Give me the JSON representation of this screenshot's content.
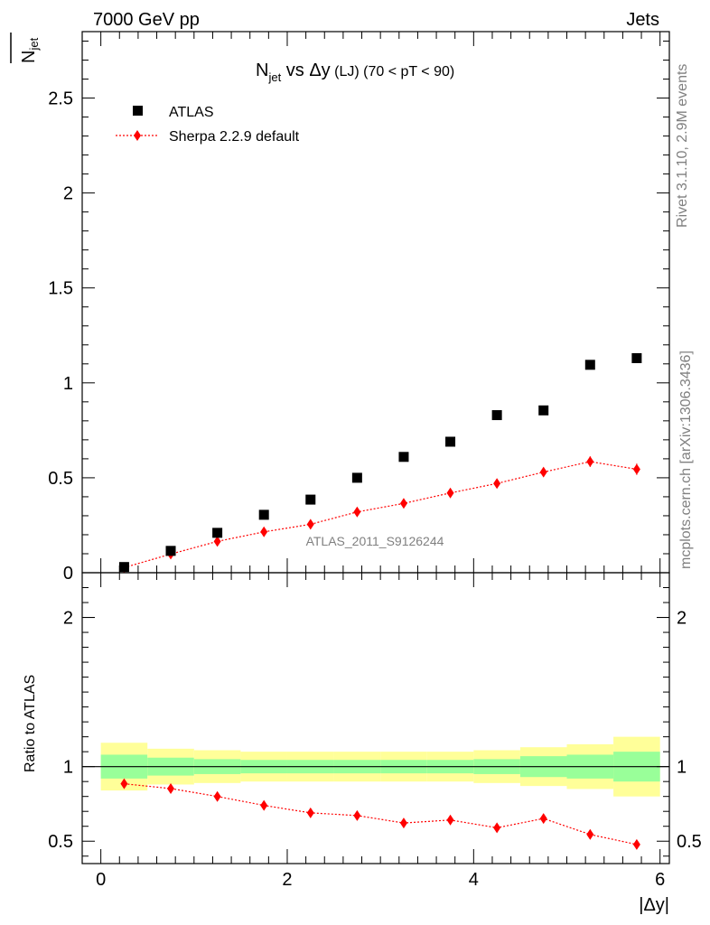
{
  "header": {
    "left": "7000 GeV pp",
    "right": "Jets"
  },
  "side_labels": {
    "rivet": "Rivet 3.1.10,  2.9M events",
    "mcplots": "mcplots.cern.ch [arXiv:1306.3436]"
  },
  "chart_data": [
    {
      "type": "scatter",
      "title_parts": {
        "n": "N",
        "jet_sub": "jet",
        "vs": " vs ",
        "delta": "Δy",
        "qual": " (LJ) (70 < pT <  90)"
      },
      "ylabel_parts": {
        "n": "N",
        "jet_sub": "jet"
      },
      "watermark": "ATLAS_2011_S9126244",
      "xlim": [
        -0.2,
        6.1
      ],
      "ylim": [
        0,
        2.85
      ],
      "yticks": [
        0,
        0.5,
        1,
        1.5,
        2,
        2.5
      ],
      "ytick_labels": [
        "0",
        "0.5",
        "1",
        "1.5",
        "2",
        "2.5"
      ],
      "legend_position": "top-left",
      "series": [
        {
          "name": "ATLAS",
          "style": "black-square",
          "color": "#000000",
          "x": [
            0.25,
            0.75,
            1.25,
            1.75,
            2.25,
            2.75,
            3.25,
            3.75,
            4.25,
            4.75,
            5.25,
            5.75
          ],
          "y": [
            0.03,
            0.115,
            0.21,
            0.305,
            0.385,
            0.5,
            0.61,
            0.69,
            0.83,
            0.855,
            1.095,
            1.13
          ]
        },
        {
          "name": "Sherpa 2.2.9 default",
          "style": "red-diamond-dotted",
          "color": "#ff0000",
          "x": [
            0.25,
            0.75,
            1.25,
            1.75,
            2.25,
            2.75,
            3.25,
            3.75,
            4.25,
            4.75,
            5.25,
            5.75
          ],
          "y": [
            0.027,
            0.098,
            0.165,
            0.215,
            0.255,
            0.32,
            0.365,
            0.42,
            0.47,
            0.53,
            0.585,
            0.545
          ],
          "yerr": [
            0.004,
            0.005,
            0.006,
            0.007,
            0.008,
            0.009,
            0.01,
            0.012,
            0.013,
            0.015,
            0.028,
            0.03
          ]
        }
      ]
    },
    {
      "type": "scatter",
      "ylabel": "Ratio to ATLAS",
      "xlabel": "|Δy|",
      "xlim": [
        -0.2,
        6.1
      ],
      "ylim": [
        0.35,
        2.3
      ],
      "yticks": [
        0.5,
        1,
        2
      ],
      "ytick_labels": [
        "0.5",
        "1",
        "2"
      ],
      "xticks": [
        0,
        2,
        4,
        6
      ],
      "xtick_labels": [
        "0",
        "2",
        "4",
        "6"
      ],
      "reference_line": 1,
      "bands": {
        "bin_edges": [
          0,
          0.5,
          1,
          1.5,
          2,
          2.5,
          3,
          3.5,
          4,
          4.5,
          5,
          5.5,
          6
        ],
        "yellow": {
          "color": "#ffff99",
          "lower": [
            0.84,
            0.88,
            0.89,
            0.9,
            0.9,
            0.9,
            0.9,
            0.9,
            0.89,
            0.87,
            0.85,
            0.8
          ],
          "upper": [
            1.16,
            1.12,
            1.11,
            1.1,
            1.1,
            1.1,
            1.1,
            1.1,
            1.11,
            1.13,
            1.15,
            1.2
          ]
        },
        "green": {
          "color": "#99ff99",
          "lower": [
            0.92,
            0.94,
            0.95,
            0.955,
            0.955,
            0.955,
            0.955,
            0.955,
            0.95,
            0.93,
            0.92,
            0.9
          ],
          "upper": [
            1.08,
            1.06,
            1.05,
            1.045,
            1.045,
            1.045,
            1.045,
            1.045,
            1.05,
            1.07,
            1.08,
            1.1
          ]
        }
      },
      "series": [
        {
          "name": "Sherpa 2.2.9 default",
          "color": "#ff0000",
          "x": [
            0.25,
            0.75,
            1.25,
            1.75,
            2.25,
            2.75,
            3.25,
            3.75,
            4.25,
            4.75,
            5.25,
            5.75
          ],
          "y": [
            0.885,
            0.853,
            0.8,
            0.74,
            0.69,
            0.672,
            0.622,
            0.642,
            0.59,
            0.652,
            0.545,
            0.478
          ],
          "yerr": [
            0.018,
            0.012,
            0.01,
            0.01,
            0.01,
            0.012,
            0.012,
            0.014,
            0.012,
            0.025,
            0.03,
            0.03
          ]
        }
      ]
    }
  ]
}
